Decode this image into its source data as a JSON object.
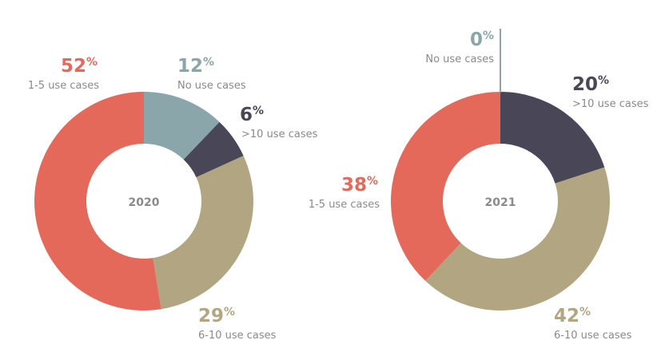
{
  "chart_data": [
    {
      "type": "pie",
      "title": "2020",
      "slices": [
        {
          "category": "No use cases",
          "value": 12,
          "color": "#8aa6aa"
        },
        {
          "category": ">10 use cases",
          "value": 6,
          "color": "#494657"
        },
        {
          "category": "6-10 use cases",
          "value": 29,
          "color": "#b2a682"
        },
        {
          "category": "1-5 use cases",
          "value": 52,
          "color": "#e4695a"
        }
      ]
    },
    {
      "type": "pie",
      "title": "2021",
      "slices": [
        {
          "category": "No use cases",
          "value": 0,
          "color": "#8aa6aa"
        },
        {
          "category": ">10 use cases",
          "value": 20,
          "color": "#494657"
        },
        {
          "category": "6-10 use cases",
          "value": 42,
          "color": "#b2a682"
        },
        {
          "category": "1-5 use cases",
          "value": 38,
          "color": "#e4695a"
        }
      ]
    }
  ],
  "percent_sign": "%"
}
